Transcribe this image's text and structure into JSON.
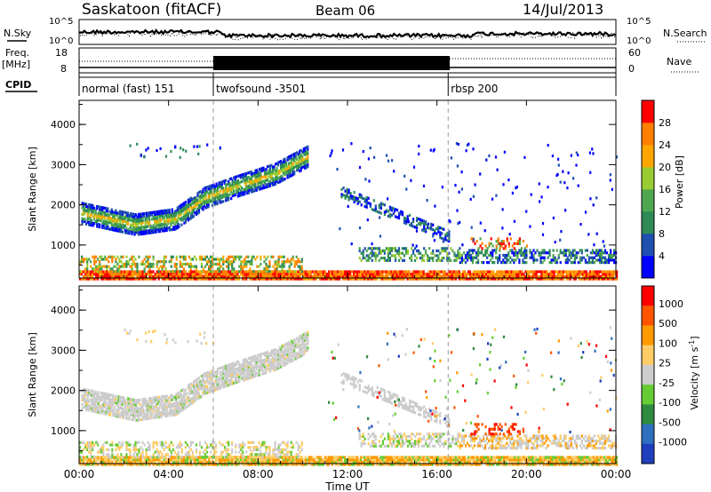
{
  "header": {
    "station": "Saskatoon (fitACF)",
    "beam": "Beam 06",
    "date": "14/Jul/2013"
  },
  "panels": {
    "nsky": {
      "label": "N.Sky",
      "right_label": "N.Search",
      "ticks": [
        "10^5",
        "10^0"
      ],
      "right_ticks": [
        "10^5",
        "10^0"
      ]
    },
    "freq": {
      "label_top": "Freq.",
      "label_bottom": "[MHz]",
      "ticks": [
        "18",
        "8"
      ],
      "right_label": "Nave",
      "right_ticks": [
        "60",
        "0"
      ]
    },
    "cpid": {
      "label": "CPID",
      "programs": [
        {
          "name": "normal (fast) 151",
          "start_hour": 0
        },
        {
          "name": "twofsound -3501",
          "start_hour": 6
        },
        {
          "name": "rbsp 200",
          "start_hour": 16.5
        }
      ]
    }
  },
  "chart_data": [
    {
      "type": "heatmap",
      "parameter": "Power",
      "ylabel": "Slant Range [km]",
      "ylim": [
        180,
        4600
      ],
      "yticks": [
        "1000",
        "2000",
        "3000",
        "4000"
      ],
      "xlim": [
        0,
        24
      ],
      "colorbar": {
        "label": "Power [dB]",
        "range": [
          0,
          32
        ],
        "ticks": [
          "4",
          "8",
          "12",
          "16",
          "20",
          "24",
          "28"
        ],
        "colors": [
          "#0000ff",
          "#1f4fb0",
          "#2e8b57",
          "#4fa84f",
          "#99cc33",
          "#ffa500",
          "#ff7f00",
          "#ff0000"
        ]
      }
    },
    {
      "type": "heatmap",
      "parameter": "Velocity",
      "ylabel": "Slant Range [km]",
      "ylim": [
        180,
        4600
      ],
      "yticks": [
        "1000",
        "2000",
        "3000",
        "4000"
      ],
      "xlim": [
        0,
        24
      ],
      "xlabel": "Time UT",
      "xticks": [
        "00:00",
        "04:00",
        "08:00",
        "12:00",
        "16:00",
        "20:00",
        "00:00"
      ],
      "colorbar": {
        "label_main": "Velocity",
        "label_unit": "[m s",
        "label_exp": "-1",
        "label_close": "]",
        "ticks": [
          "1000",
          "500",
          "100",
          "25",
          "-25",
          "-100",
          "-500",
          "-1000"
        ],
        "colors": [
          "#1f3fbf",
          "#2e6fbf",
          "#2e8b3f",
          "#66cc33",
          "#cccccc",
          "#ffcc66",
          "#ff9900",
          "#ff5500",
          "#ff0000"
        ]
      }
    }
  ]
}
